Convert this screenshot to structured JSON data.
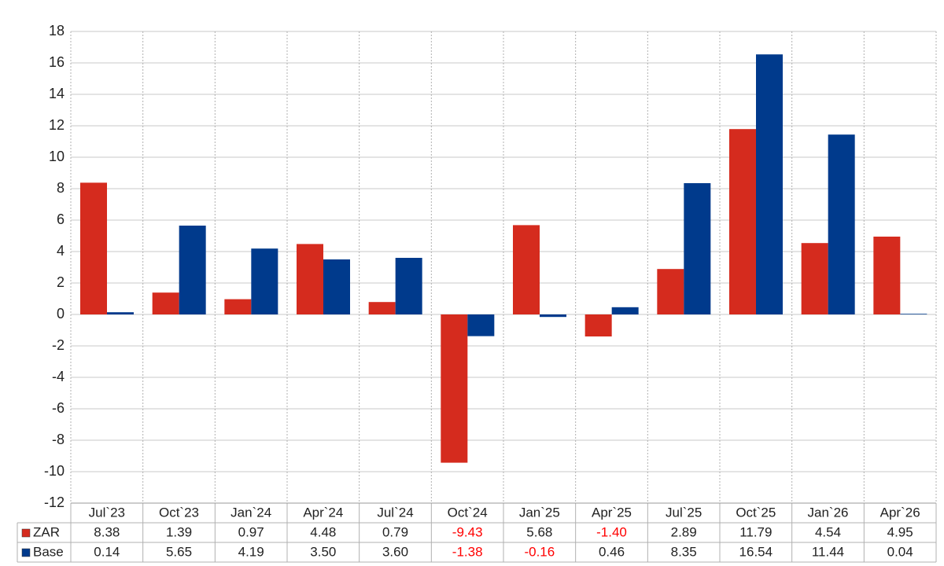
{
  "chart_data": {
    "type": "bar",
    "categories": [
      "Jul`23",
      "Oct`23",
      "Jan`24",
      "Apr`24",
      "Jul`24",
      "Oct`24",
      "Jan`25",
      "Apr`25",
      "Jul`25",
      "Oct`25",
      "Jan`26",
      "Apr`26"
    ],
    "series": [
      {
        "name": "ZAR",
        "color": "#d52b1e",
        "values": [
          8.38,
          1.39,
          0.97,
          4.48,
          0.79,
          -9.43,
          5.68,
          -1.4,
          2.89,
          11.79,
          4.54,
          4.95
        ],
        "value_labels": [
          "8.38",
          "1.39",
          "0.97",
          "4.48",
          "0.79",
          "-9.43",
          "5.68",
          "-1.40",
          "2.89",
          "11.79",
          "4.54",
          "4.95"
        ]
      },
      {
        "name": "Base",
        "color": "#003a8c",
        "values": [
          0.14,
          5.65,
          4.19,
          3.5,
          3.6,
          -1.38,
          -0.16,
          0.46,
          8.35,
          16.54,
          11.44,
          0.04
        ],
        "value_labels": [
          "0.14",
          "5.65",
          "4.19",
          "3.50",
          "3.60",
          "-1.38",
          "-0.16",
          "0.46",
          "8.35",
          "16.54",
          "11.44",
          "0.04"
        ]
      }
    ],
    "ylim": [
      -12,
      18
    ],
    "yticks": [
      -12,
      -10,
      -8,
      -6,
      -4,
      -2,
      0,
      2,
      4,
      6,
      8,
      10,
      12,
      14,
      16,
      18
    ],
    "grid": true,
    "negative_label_color": "#ff0000"
  }
}
